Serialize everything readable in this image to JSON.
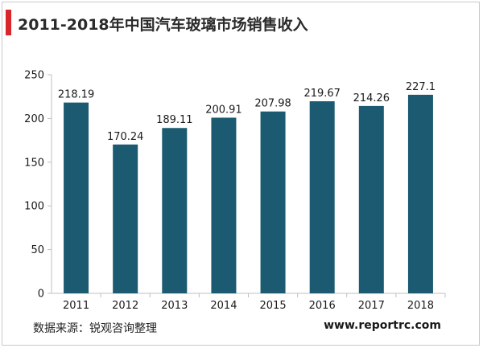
{
  "chart_data": {
    "type": "bar",
    "title": "2011-2018年中国汽车玻璃市场销售收入",
    "categories": [
      "2011",
      "2012",
      "2013",
      "2014",
      "2015",
      "2016",
      "2017",
      "2018"
    ],
    "values": [
      218.19,
      170.24,
      189.11,
      200.91,
      207.98,
      219.67,
      214.26,
      227.1
    ],
    "value_labels": [
      "218.19",
      "170.24",
      "189.11",
      "200.91",
      "207.98",
      "219.67",
      "214.26",
      "227.1"
    ],
    "ylim": [
      0,
      250
    ],
    "yticks": [
      0,
      50,
      100,
      150,
      200,
      250
    ],
    "grid": false,
    "bar_color": "#1b5a70",
    "xlabel": "",
    "ylabel": ""
  },
  "footer": {
    "source": "数据来源：锐观咨询整理",
    "website": "www.reportrc.com"
  },
  "colors": {
    "accent": "#d9262b",
    "bar": "#1b5a70"
  }
}
